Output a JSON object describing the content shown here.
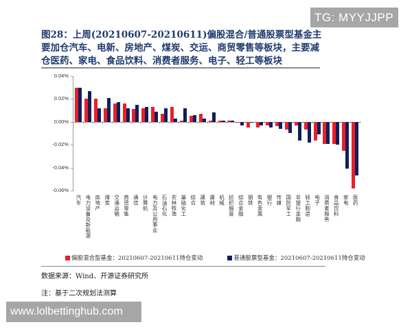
{
  "watermark_top": "TG: MYYJJPP",
  "watermark_bottom": "www.lolbettinghub.com",
  "figure": {
    "title": "图28：上周(20210607-20210611)偏股混合/普通股票型基金主要加仓汽车、电新、房地产、煤炭、交运、商贸零售等板块，主要减仓医药、家电、食品饮料、消费者服务、电子、轻工等板块",
    "source": "数据来源：Wind、开源证券研究所",
    "note": "注：基于二次规划法测算"
  },
  "colors": {
    "series1": "#e8202a",
    "series2": "#0e1f5b"
  },
  "chart_data": {
    "type": "bar",
    "title": "上周(20210607-20210611)偏股混合/普通股票型基金主要加仓汽车、电新、房地产、煤炭、交运、商贸零售等板块，主要减仓医药、家电、食品饮料、消费者服务、电子、轻工等板块",
    "xlabel": "",
    "ylabel": "",
    "ylim": [
      -0.06,
      0.04
    ],
    "yticks": [
      "0.04%",
      "0.02%",
      "0.00%",
      "-0.02%",
      "-0.04%",
      "-0.06%"
    ],
    "unit": "%",
    "grid": false,
    "legend_position": "bottom",
    "categories": [
      "汽车",
      "电力设备及新能源",
      "房地产",
      "煤炭",
      "交通运输",
      "商贸零售",
      "通信",
      "计算机",
      "电力及公用事业",
      "石油石化",
      "农林牧渔",
      "基础化工",
      "综合",
      "建筑",
      "建材",
      "机械",
      "纺织服装",
      "综合金融",
      "钢铁",
      "有色金属",
      "银行",
      "传媒",
      "国防军工",
      "非银行金融",
      "轻工制造",
      "电子",
      "消费者服务",
      "食品饮料",
      "家电",
      "医药"
    ],
    "series": [
      {
        "name": "偏股混合型基金：20210607-20210611持仓变动",
        "values": [
          0.03,
          0.02,
          0.02,
          0.012,
          0.016,
          0.016,
          0.011,
          0.012,
          0.013,
          0.007,
          0.013,
          0.001,
          0.005,
          0.007,
          0.001,
          0.001,
          0.001,
          0.0,
          -0.005,
          -0.005,
          -0.003,
          -0.004,
          -0.007,
          -0.003,
          -0.007,
          -0.016,
          -0.019,
          -0.019,
          -0.025,
          -0.058
        ]
      },
      {
        "name": "普通股票型基金：20210607-20210611持仓变动",
        "values": [
          0.03,
          0.027,
          0.012,
          0.021,
          0.017,
          0.012,
          0.015,
          0.013,
          0.009,
          0.012,
          0.003,
          0.012,
          0.006,
          0.003,
          0.008,
          0.001,
          0.001,
          -0.003,
          -0.001,
          -0.003,
          -0.005,
          -0.006,
          -0.01,
          -0.016,
          -0.018,
          -0.011,
          -0.019,
          -0.02,
          -0.041,
          -0.047
        ]
      }
    ]
  }
}
